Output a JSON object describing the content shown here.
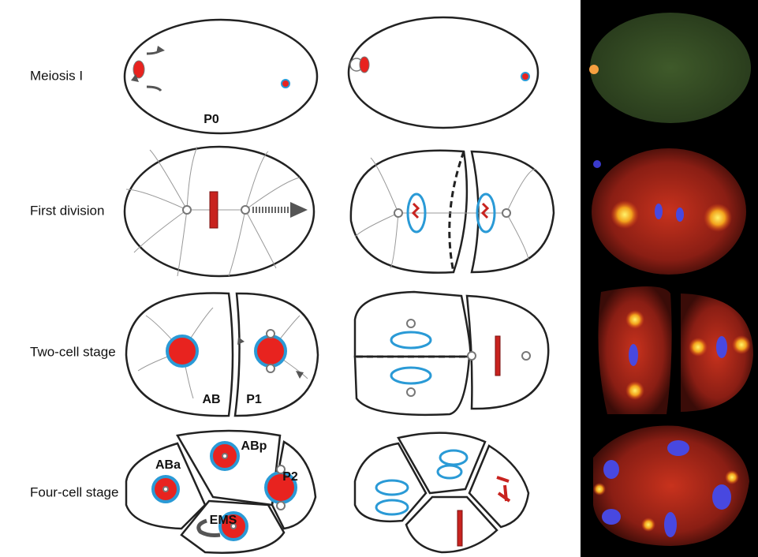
{
  "rows": [
    {
      "label": "Meiosis I",
      "cell_labels": [
        "P0"
      ]
    },
    {
      "label": "First division"
    },
    {
      "label": "Two-cell stage",
      "cell_labels": [
        "AB",
        "P1"
      ]
    },
    {
      "label": "Four-cell stage",
      "cell_labels": [
        "ABa",
        "ABp",
        "P2",
        "EMS"
      ]
    }
  ]
}
